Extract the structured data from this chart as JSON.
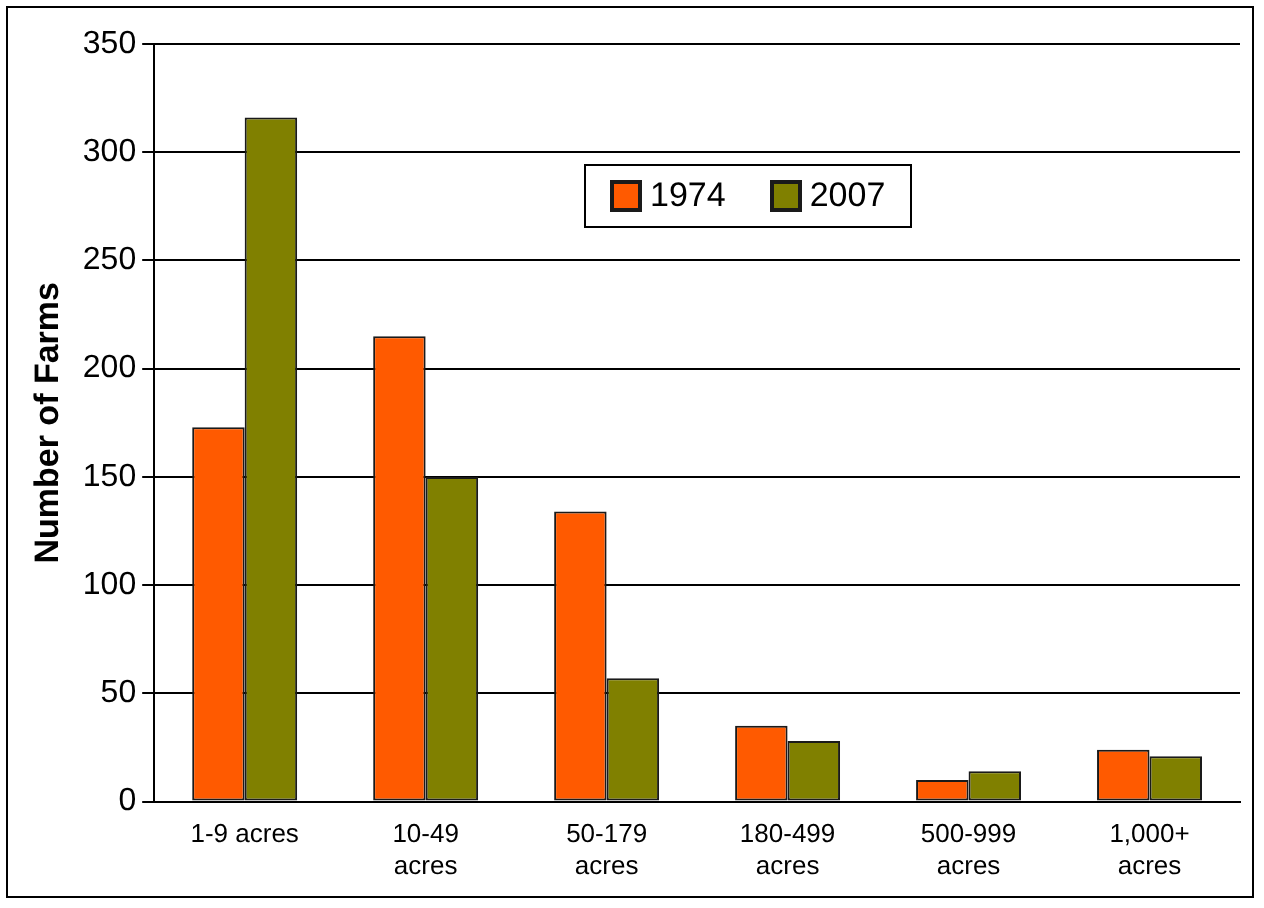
{
  "chart_data": {
    "type": "bar",
    "ylabel": "Number of Farms",
    "categories": [
      "1-9 acres",
      "10-49 acres",
      "50-179 acres",
      "180-499 acres",
      "500-999 acres",
      "1,000+ acres"
    ],
    "series": [
      {
        "name": "1974",
        "color": "#ff5a00",
        "values": [
          173,
          215,
          134,
          35,
          10,
          24
        ]
      },
      {
        "name": "2007",
        "color": "#808000",
        "values": [
          316,
          150,
          57,
          28,
          14,
          21
        ]
      }
    ],
    "ylim": [
      0,
      350
    ],
    "yticks": [
      0,
      50,
      100,
      150,
      200,
      250,
      300,
      350
    ],
    "grid": "y",
    "legend": "top"
  }
}
